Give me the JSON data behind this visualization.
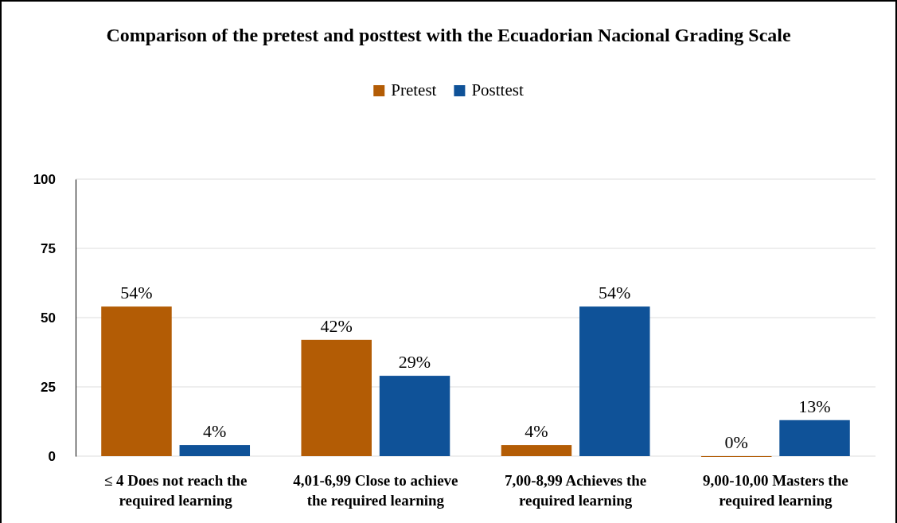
{
  "chart_data": {
    "type": "bar",
    "title": "Comparison of the pretest and posttest with the Ecuadorian Nacional Grading Scale",
    "categories": [
      "≤ 4 Does not reach the required learning",
      "4,01-6,99 Close to achieve the required learning",
      "7,00-8,99 Achieves the required learning",
      "9,00-10,00 Masters the required learning"
    ],
    "series": [
      {
        "name": "Pretest",
        "color": "#b35c05",
        "values": [
          54,
          42,
          4,
          0
        ],
        "value_labels": [
          "54%",
          "42%",
          "4%",
          "0%"
        ]
      },
      {
        "name": "Posttest",
        "color": "#0f5298",
        "values": [
          4,
          29,
          54,
          13
        ],
        "value_labels": [
          "4%",
          "29%",
          "54%",
          "13%"
        ]
      }
    ],
    "ylim": [
      0,
      100
    ],
    "yticks": [
      0,
      25,
      50,
      75,
      100
    ],
    "grid": "y",
    "legend": "top"
  }
}
